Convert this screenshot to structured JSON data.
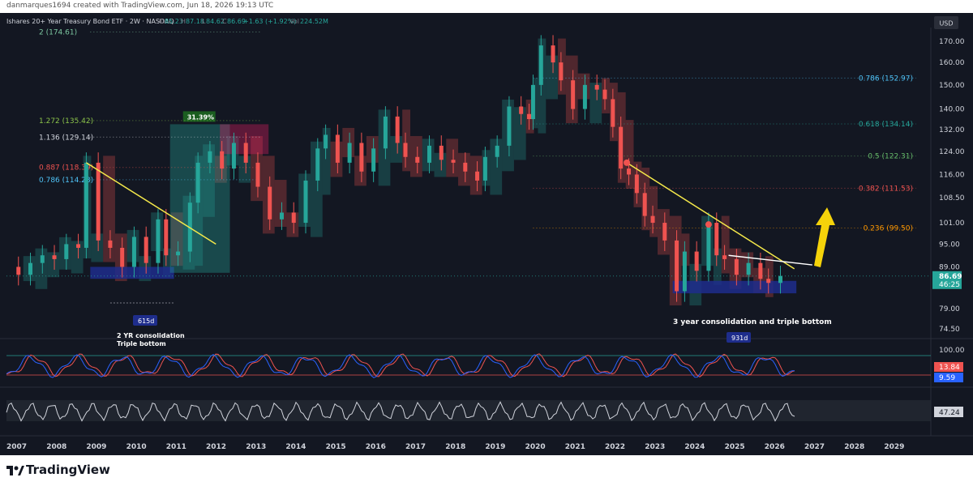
{
  "attribution": "danmarques1694 created with TradingView.com, Jun 18, 2026 19:13 UTC",
  "brand": "TradingView",
  "colors": {
    "background": "#131722",
    "up": "#26a69a",
    "down": "#ef5350",
    "trend": "#f5e94a",
    "blue_box": "#1e2d8c"
  },
  "chart_data": {
    "type": "line",
    "title": "Ishares 20+ Year Treasury Bond ETF · 2W · NASDAQ",
    "ohlc": {
      "O": "85.23",
      "H": "87.18",
      "L": "84.62",
      "C": "86.69",
      "change": "+1.63 (+1.92%)",
      "Vol": "224.52M"
    },
    "currency": "USD",
    "y_scale": "log",
    "y_ticks": [
      "170.00",
      "160.00",
      "150.00",
      "140.00",
      "132.00",
      "124.00",
      "116.00",
      "108.50",
      "101.00",
      "95.00",
      "89.00",
      "79.00",
      "74.50"
    ],
    "x_ticks": [
      "2007",
      "2008",
      "2009",
      "2010",
      "2011",
      "2012",
      "2013",
      "2014",
      "2015",
      "2016",
      "2017",
      "2018",
      "2019",
      "2020",
      "2021",
      "2022",
      "2023",
      "2024",
      "2025",
      "2026",
      "2027",
      "2028",
      "2029"
    ],
    "price_badges": [
      "86.69",
      "46:25"
    ],
    "price_series": {
      "x": [
        2007.0,
        2007.3,
        2007.6,
        2007.9,
        2008.2,
        2008.5,
        2008.8,
        2009.0,
        2009.3,
        2009.6,
        2009.9,
        2010.2,
        2010.5,
        2010.8,
        2011.0,
        2011.3,
        2011.6,
        2011.8,
        2012.1,
        2012.4,
        2012.7,
        2013.0,
        2013.3,
        2013.6,
        2013.9,
        2014.2,
        2014.5,
        2014.8,
        2015.0,
        2015.3,
        2015.6,
        2015.9,
        2016.2,
        2016.5,
        2016.8,
        2017.0,
        2017.3,
        2017.6,
        2017.9,
        2018.2,
        2018.5,
        2018.8,
        2019.0,
        2019.3,
        2019.6,
        2019.9,
        2020.1,
        2020.2,
        2020.4,
        2020.7,
        2020.9,
        2021.2,
        2021.5,
        2021.8,
        2022.0,
        2022.2,
        2022.4,
        2022.6,
        2022.8,
        2023.0,
        2023.2,
        2023.5,
        2023.8,
        2024.0,
        2024.3,
        2024.6,
        2024.8,
        2025.0,
        2025.3,
        2025.6,
        2025.9,
        2026.1,
        2026.4
      ],
      "y": [
        89,
        87,
        90,
        92,
        91,
        95,
        94,
        120,
        96,
        94,
        89,
        97,
        90,
        102,
        92,
        93,
        107,
        120,
        124,
        118,
        127,
        120,
        112,
        102,
        104,
        101,
        114,
        125,
        130,
        120,
        127,
        117,
        125,
        137,
        127,
        122,
        120,
        126,
        121,
        120,
        117,
        114,
        122,
        126,
        141,
        138,
        136,
        150,
        168,
        160,
        152,
        140,
        150,
        148,
        144,
        133,
        118,
        116,
        110,
        103,
        101,
        96,
        83,
        93,
        88,
        101,
        92,
        91,
        87,
        90,
        86,
        85,
        86.7
      ]
    },
    "trendlines": [
      {
        "from": [
          2009.0,
          120
        ],
        "to": [
          2012.25,
          95
        ]
      },
      {
        "from": [
          2022.55,
          120
        ],
        "to": [
          2026.75,
          88.5
        ]
      },
      {
        "from": [
          2025.1,
          92
        ],
        "to": [
          2027.2,
          89.5
        ]
      }
    ],
    "support_zones": [
      {
        "x": [
          2009.1,
          2011.2
        ],
        "y": [
          86,
          89
        ]
      },
      {
        "x": [
          2023.7,
          2026.8
        ],
        "y": [
          82.5,
          85.5
        ]
      }
    ],
    "measurement": {
      "label": "31.39%",
      "x": [
        2011.1,
        2012.6
      ],
      "y": [
        87.5,
        134
      ]
    },
    "fib_left": [
      {
        "label": "2 (174.61)",
        "color": "#7cc7a0",
        "y": 174.61
      },
      {
        "label": "1.272 (135.42)",
        "color": "#8bc34a",
        "y": 135.42
      },
      {
        "label": "1.136 (129.14)",
        "color": "#d1d4dc",
        "y": 129.14
      },
      {
        "label": "0.887 (118.39)",
        "color": "#ef5350",
        "y": 118.39
      },
      {
        "label": "0.786 (114.28)",
        "color": "#4fc3f7",
        "y": 114.28
      }
    ],
    "fib_right": [
      {
        "label": "0.786 (152.97)",
        "color": "#4fc3f7",
        "y": 152.97
      },
      {
        "label": "0.618 (134.14)",
        "color": "#26a69a",
        "y": 134.14
      },
      {
        "label": "0.5 (122.31)",
        "color": "#66bb6a",
        "y": 122.31
      },
      {
        "label": "0.382 (111.53)",
        "color": "#ef5350",
        "y": 111.53
      },
      {
        "label": "0.236 (99.50)",
        "color": "#ff9800",
        "y": 99.5
      }
    ],
    "annotations": {
      "left_days": "615d",
      "left_note_1": "2 YR consolidation",
      "left_note_2": "Triple bottom",
      "right_days": "931d",
      "right_note": "3 year consolidation and triple bottom"
    },
    "osc1": {
      "ticks": [
        "100.00"
      ],
      "badges": [
        "13.84",
        "9.59"
      ],
      "badge_colors": [
        "#ef5350",
        "#2962ff"
      ]
    },
    "osc2": {
      "badge": "47.24"
    }
  }
}
